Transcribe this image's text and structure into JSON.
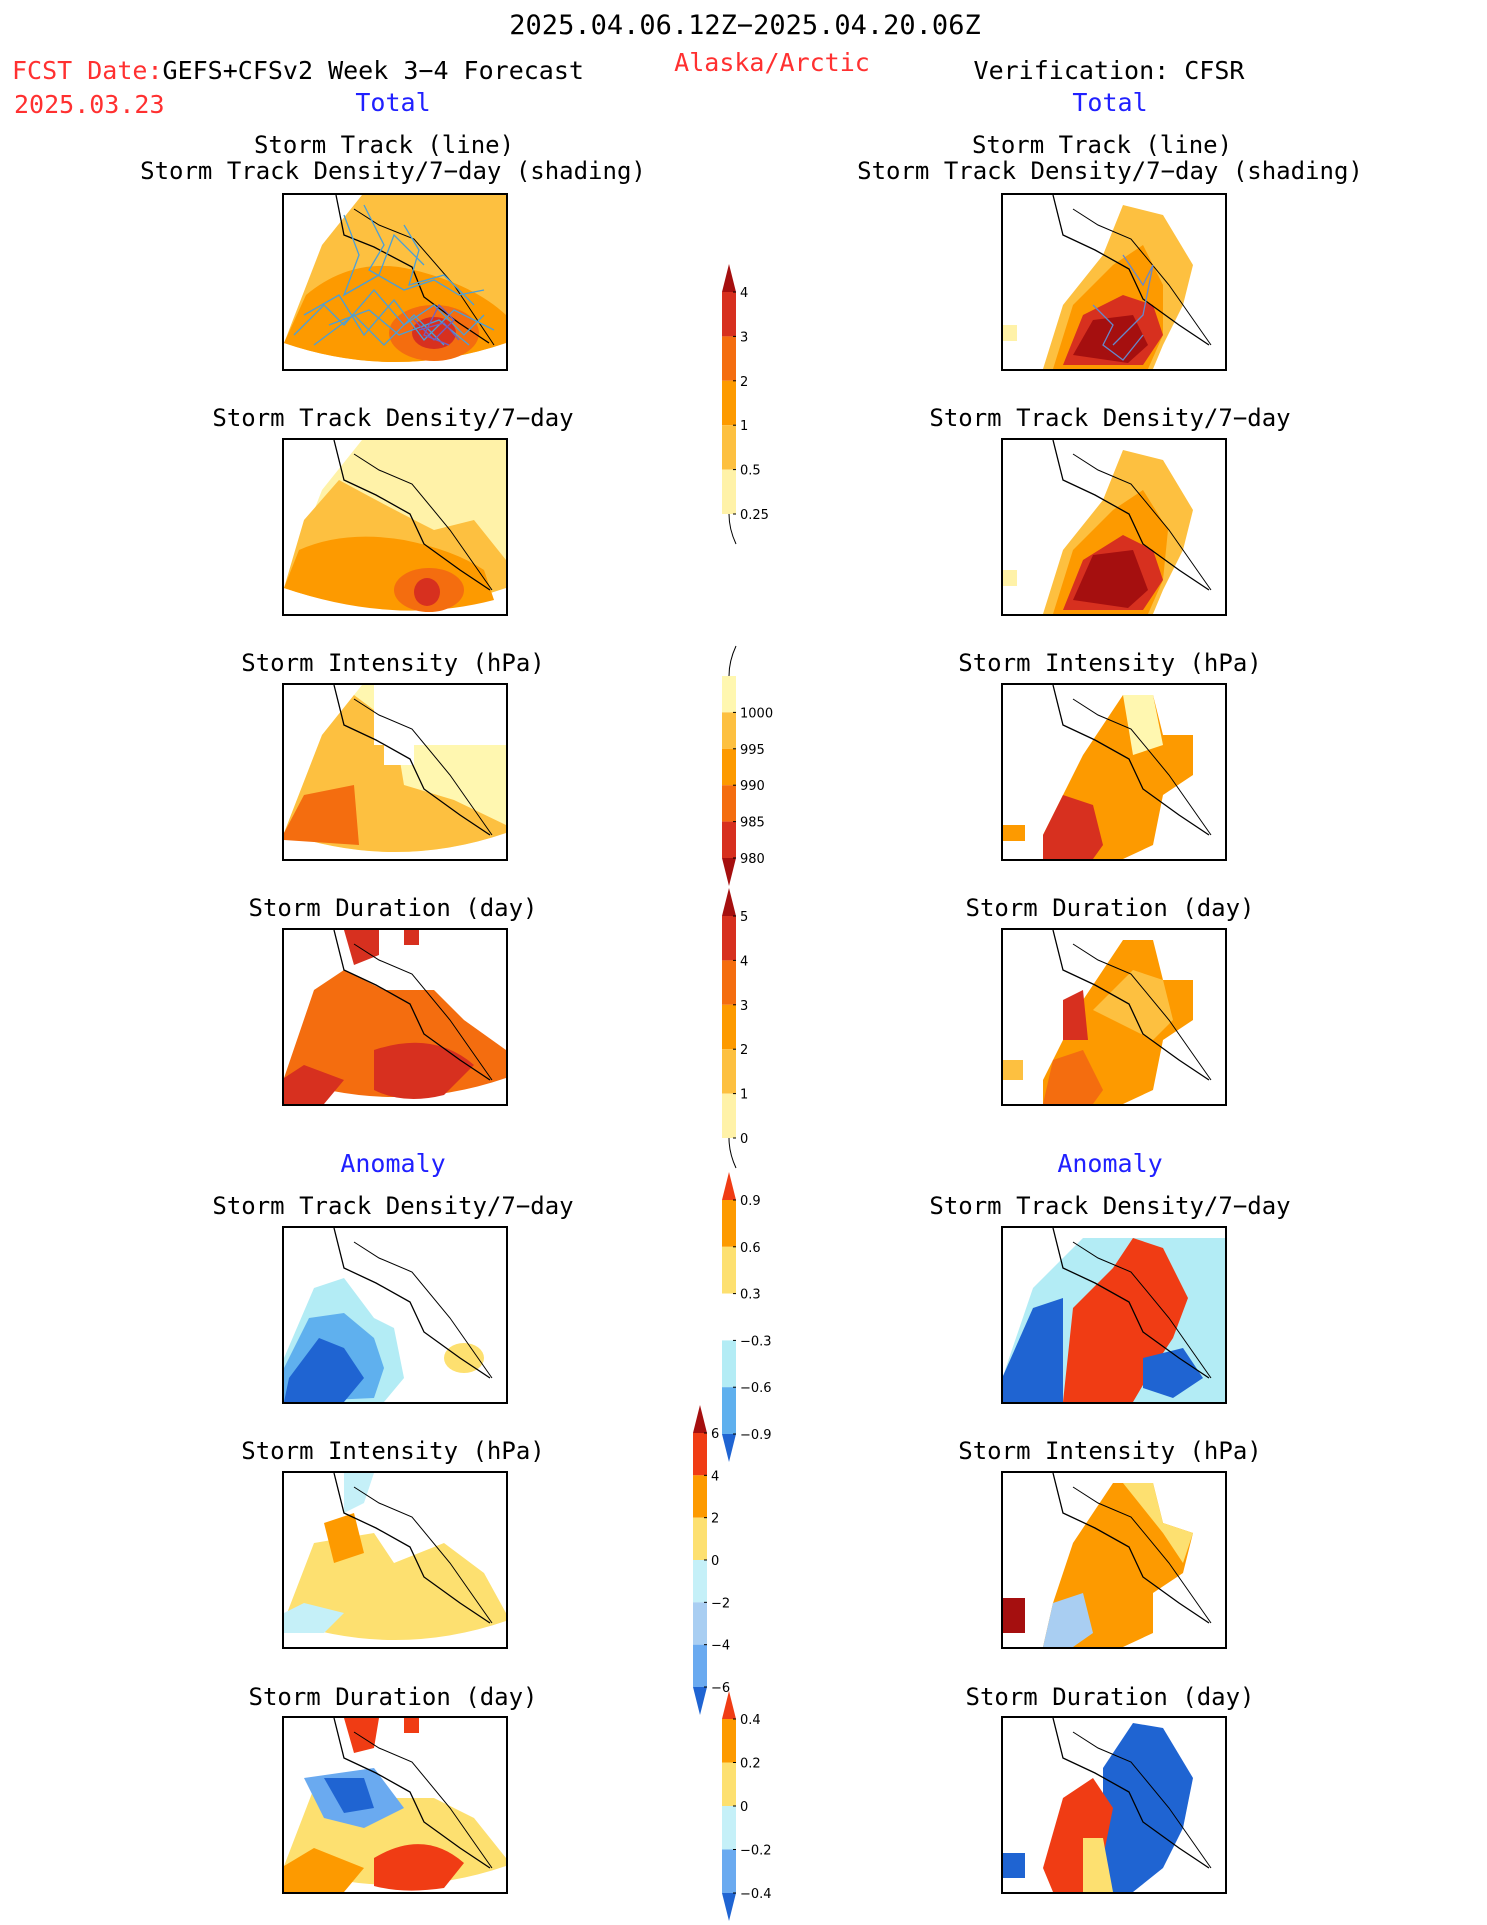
{
  "header": {
    "period": "2025.04.06.12Z−2025.04.20.06Z",
    "fcst_prefix": "FCST Date:",
    "fcst_name": "GEFS+CFSv2 Week 3−4 Forecast",
    "fcst_date": "2025.03.23",
    "region": "Alaska/Arctic",
    "verification": "Verification: CFSR"
  },
  "left": {
    "total_label": "Total",
    "anomaly_label": "Anomaly",
    "panels": [
      {
        "title1": "Storm Track (line)",
        "title2": "Storm Track Density/7−day (shading)"
      },
      {
        "title1": "Storm Track Density/7−day"
      },
      {
        "title1": "Storm Intensity (hPa)"
      },
      {
        "title1": "Storm Duration (day)"
      },
      {
        "title1": "Storm Track Density/7−day"
      },
      {
        "title1": "Storm Intensity (hPa)"
      },
      {
        "title1": "Storm Duration (day)"
      }
    ]
  },
  "right": {
    "total_label": "Total",
    "anomaly_label": "Anomaly",
    "panels": [
      {
        "title1": "Storm Track (line)",
        "title2": "Storm Track Density/7−day (shading)"
      },
      {
        "title1": "Storm Track Density/7−day"
      },
      {
        "title1": "Storm Intensity (hPa)"
      },
      {
        "title1": "Storm Duration (day)"
      },
      {
        "title1": "Storm Track Density/7−day"
      },
      {
        "title1": "Storm Intensity (hPa)"
      },
      {
        "title1": "Storm Duration (day)"
      }
    ]
  },
  "colorbars": [
    {
      "name": "density",
      "ticks": [
        "4",
        "3",
        "2",
        "1",
        "0.5",
        "0.25"
      ],
      "colors": [
        "#a50f0f",
        "#d7301f",
        "#f46d0f",
        "#fd9a00",
        "#fdc040",
        "#fff2a8"
      ]
    },
    {
      "name": "intensity",
      "ticks": [
        "1000",
        "995",
        "990",
        "985",
        "980"
      ],
      "colors": [
        "#fff7b0",
        "#fdc040",
        "#fd9a00",
        "#f46d0f",
        "#d7301f",
        "#a50f0f"
      ]
    },
    {
      "name": "duration",
      "ticks": [
        "5",
        "4",
        "3",
        "2",
        "1",
        "0"
      ],
      "colors": [
        "#a50f0f",
        "#d7301f",
        "#f46d0f",
        "#fd9a00",
        "#fdc040",
        "#fff2a8"
      ]
    },
    {
      "name": "density-anomaly",
      "ticks": [
        "0.9",
        "0.6",
        "0.3",
        "−0.3",
        "−0.6",
        "−0.9"
      ],
      "colors": [
        "#f03c14",
        "#fd9a00",
        "#fde070",
        "#ffffff",
        "#b3ecf5",
        "#5fb0ee",
        "#1f64d2"
      ]
    },
    {
      "name": "intensity-anomaly",
      "ticks": [
        "6",
        "4",
        "2",
        "0",
        "−2",
        "−4",
        "−6"
      ],
      "colors": [
        "#a50f0f",
        "#f03c14",
        "#fd9a00",
        "#fde070",
        "#c5f0f8",
        "#a9cef2",
        "#6aaaf0",
        "#1f64d2"
      ]
    },
    {
      "name": "duration-anomaly",
      "ticks": [
        "0.4",
        "0.2",
        "0",
        "−0.2",
        "−0.4"
      ],
      "colors": [
        "#f03c14",
        "#fd9a00",
        "#fde070",
        "#c5f0f8",
        "#6aaaf0",
        "#1f64d2"
      ]
    }
  ]
}
